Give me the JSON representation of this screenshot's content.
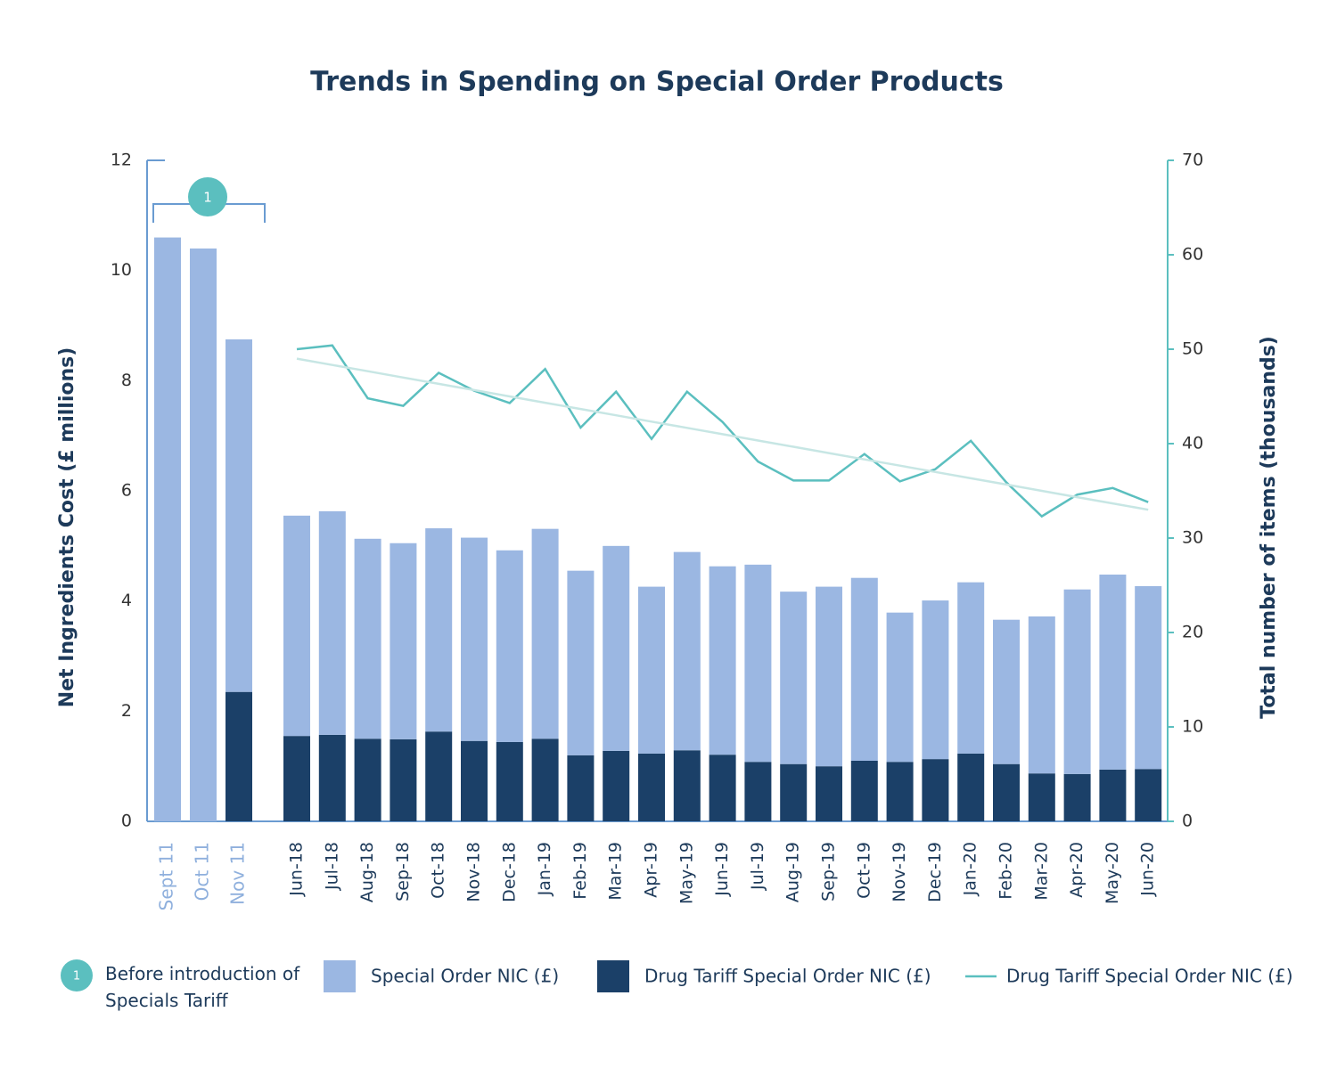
{
  "chart_data": {
    "type": "bar",
    "title": "Trends in Spending on Special Order Products",
    "ylabel": "Net Ingredients Cost (£ millions)",
    "y2label": "Total number of items (thousands)",
    "categories": [
      "Sept 11",
      "Oct 11",
      "Nov 11",
      "Jun-18",
      "Jul-18",
      "Aug-18",
      "Sep-18",
      "Oct-18",
      "Nov-18",
      "Dec-18",
      "Jan-19",
      "Feb-19",
      "Mar-19",
      "Apr-19",
      "May-19",
      "Jun-19",
      "Jul-19",
      "Aug-19",
      "Sep-19",
      "Oct-19",
      "Nov-19",
      "Dec-19",
      "Jan-20",
      "Feb-20",
      "Mar-20",
      "Apr-20",
      "May-20",
      "Jun-20"
    ],
    "series": [
      {
        "name": "Special Order NIC (£)",
        "color": "#9bb7e2",
        "stacked": true,
        "values": [
          10.6,
          10.4,
          6.4,
          4.0,
          4.06,
          3.63,
          3.56,
          3.69,
          3.69,
          3.48,
          3.81,
          3.35,
          3.72,
          3.03,
          3.6,
          3.42,
          3.58,
          3.13,
          3.26,
          3.32,
          2.71,
          2.88,
          3.11,
          2.62,
          2.85,
          3.35,
          3.54,
          3.32
        ]
      },
      {
        "name": "Drug Tariff Special Order NIC (£)",
        "color": "#1b4068",
        "stacked": true,
        "values": [
          null,
          null,
          2.35,
          1.55,
          1.57,
          1.5,
          1.49,
          1.63,
          1.46,
          1.44,
          1.5,
          1.2,
          1.28,
          1.23,
          1.29,
          1.21,
          1.08,
          1.04,
          1.0,
          1.1,
          1.08,
          1.13,
          1.23,
          1.04,
          0.87,
          0.86,
          0.94,
          0.95
        ]
      },
      {
        "name": "Drug Tariff Special Order NIC (£)",
        "type": "line",
        "axis": "y2",
        "color": "#5bbfbf",
        "values": [
          null,
          null,
          null,
          50,
          50.4,
          44.8,
          44,
          47.5,
          45.6,
          44.3,
          47.9,
          41.7,
          45.5,
          40.5,
          45.5,
          42.3,
          38.1,
          36.1,
          36.1,
          38.9,
          36,
          37.3,
          40.3,
          35.9,
          32.3,
          34.6,
          35.3,
          33.8
        ]
      },
      {
        "type": "line",
        "axis": "y2",
        "color": "#c7e6e4",
        "values": [
          null,
          null,
          null,
          49,
          48.33,
          47.67,
          47,
          46.33,
          45.67,
          45,
          44.33,
          43.67,
          43,
          42.33,
          41.67,
          41,
          40.33,
          39.67,
          39,
          38.33,
          37.67,
          37,
          36.33,
          35.67,
          35,
          34.33,
          33.67,
          33
        ]
      }
    ],
    "ylim": [
      0,
      12
    ],
    "yticks": [
      0,
      2,
      4,
      6,
      8,
      10,
      12
    ],
    "y2lim": [
      0,
      70
    ],
    "y2ticks": [
      0,
      10,
      20,
      30,
      40,
      50,
      60,
      70
    ],
    "annotation": {
      "marker": "1",
      "text": "Before introduction of Specials Tariff"
    }
  }
}
